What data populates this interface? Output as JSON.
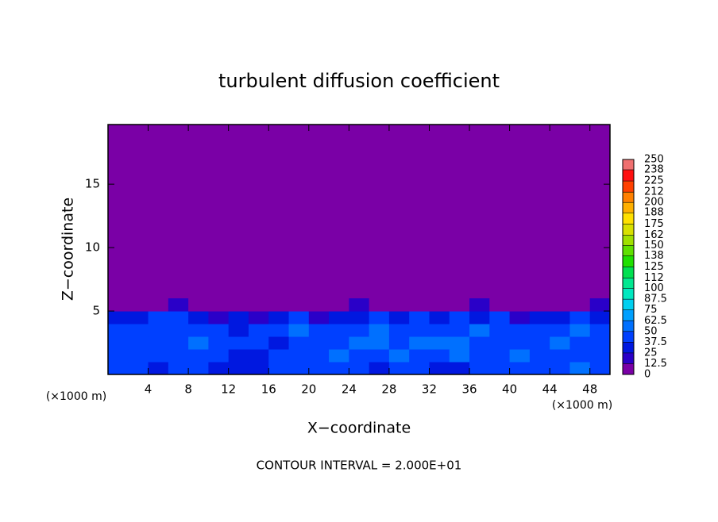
{
  "chart_data": {
    "type": "heatmap",
    "title": "turbulent diffusion coefficient",
    "x_label": "X−coordinate",
    "y_label": "Z−coordinate",
    "x_unit": "(×1000 m)",
    "z_unit": "(×1000 m)",
    "footer": "CONTOUR INTERVAL = 2.000E+01",
    "xlim": [
      0,
      50
    ],
    "ylim": [
      0,
      19.7
    ],
    "xticks": [
      4,
      8,
      12,
      16,
      20,
      24,
      28,
      32,
      36,
      40,
      44,
      48
    ],
    "yticks": [
      5,
      10,
      15
    ],
    "x_edges": [
      0,
      2,
      4,
      6,
      8,
      10,
      12,
      14,
      16,
      18,
      20,
      22,
      24,
      26,
      28,
      30,
      32,
      34,
      36,
      38,
      40,
      42,
      44,
      46,
      48,
      50
    ],
    "z_edges": [
      0,
      1,
      2,
      3,
      4,
      5,
      6
    ],
    "values": [
      [
        40,
        38,
        35,
        40,
        38,
        30,
        35,
        32,
        45,
        40,
        38,
        42,
        40,
        35,
        40,
        38,
        30,
        35,
        40,
        45,
        38,
        40,
        42,
        50,
        40
      ],
      [
        38,
        40,
        42,
        45,
        40,
        38,
        35,
        30,
        42,
        48,
        45,
        50,
        40,
        45,
        50,
        38,
        42,
        55,
        48,
        40,
        50,
        45,
        45,
        40,
        42
      ],
      [
        40,
        42,
        38,
        45,
        50,
        45,
        42,
        40,
        35,
        48,
        40,
        45,
        50,
        52,
        45,
        55,
        60,
        50,
        45,
        48,
        40,
        42,
        50,
        48,
        45
      ],
      [
        45,
        40,
        42,
        48,
        45,
        40,
        35,
        45,
        42,
        50,
        38,
        40,
        45,
        50,
        42,
        48,
        40,
        45,
        52,
        42,
        38,
        40,
        45,
        50,
        42
      ],
      [
        35,
        30,
        40,
        38,
        30,
        20,
        25,
        20,
        30,
        38,
        15,
        30,
        35,
        40,
        30,
        38,
        35,
        40,
        30,
        40,
        20,
        30,
        35,
        38,
        30
      ],
      [
        5,
        5,
        10,
        15,
        5,
        5,
        5,
        5,
        8,
        10,
        5,
        10,
        15,
        12,
        10,
        8,
        5,
        10,
        15,
        5,
        5,
        5,
        8,
        10,
        20
      ]
    ],
    "colorbar_levels": [
      0,
      12.5,
      25,
      37.5,
      50,
      62.5,
      75,
      87.5,
      100,
      112,
      125,
      138,
      150,
      162,
      175,
      188,
      200,
      212,
      225,
      238,
      250
    ],
    "colors": [
      "#7a00a6",
      "#2a00c8",
      "#0018e0",
      "#0040ff",
      "#0070ff",
      "#00a0ff",
      "#00d0f0",
      "#00e8c0",
      "#00e890",
      "#00e050",
      "#20e000",
      "#60e000",
      "#a0e000",
      "#d8e000",
      "#ffe000",
      "#ffb000",
      "#ff8000",
      "#ff4000",
      "#ff1010",
      "#f07070"
    ]
  }
}
